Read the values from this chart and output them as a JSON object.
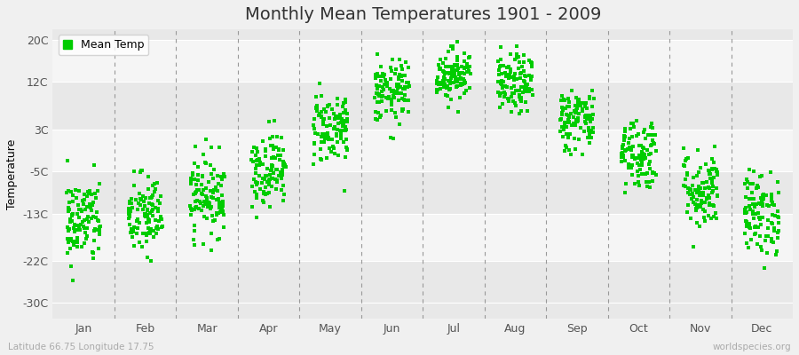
{
  "title": "Monthly Mean Temperatures 1901 - 2009",
  "ylabel": "Temperature",
  "xlabel_labels": [
    "Jan",
    "Feb",
    "Mar",
    "Apr",
    "May",
    "Jun",
    "Jul",
    "Aug",
    "Sep",
    "Oct",
    "Nov",
    "Dec"
  ],
  "ytick_labels": [
    "20C",
    "12C",
    "3C",
    "-5C",
    "-13C",
    "-22C",
    "-30C"
  ],
  "ytick_values": [
    20,
    12,
    3,
    -5,
    -13,
    -22,
    -30
  ],
  "ylim": [
    -33,
    22
  ],
  "dot_color": "#00cc00",
  "dot_size": 6,
  "background_color": "#f0f0f0",
  "plot_bg_color": "#efefef",
  "band_color_1": "#e8e8e8",
  "band_color_2": "#f5f5f5",
  "dashed_line_color": "#999999",
  "legend_label": "Mean Temp",
  "subtitle_left": "Latitude 66.75 Longitude 17.75",
  "subtitle_right": "worldspecies.org",
  "years": 109,
  "monthly_means": [
    -14.5,
    -13.5,
    -9.5,
    -4.5,
    3.5,
    10.0,
    13.5,
    11.5,
    5.0,
    -1.5,
    -8.5,
    -13.0
  ],
  "monthly_stds": [
    4.2,
    4.0,
    3.8,
    3.5,
    3.5,
    3.0,
    2.5,
    2.8,
    3.0,
    3.5,
    3.8,
    4.0
  ],
  "title_fontsize": 14,
  "axis_fontsize": 9,
  "legend_fontsize": 9
}
